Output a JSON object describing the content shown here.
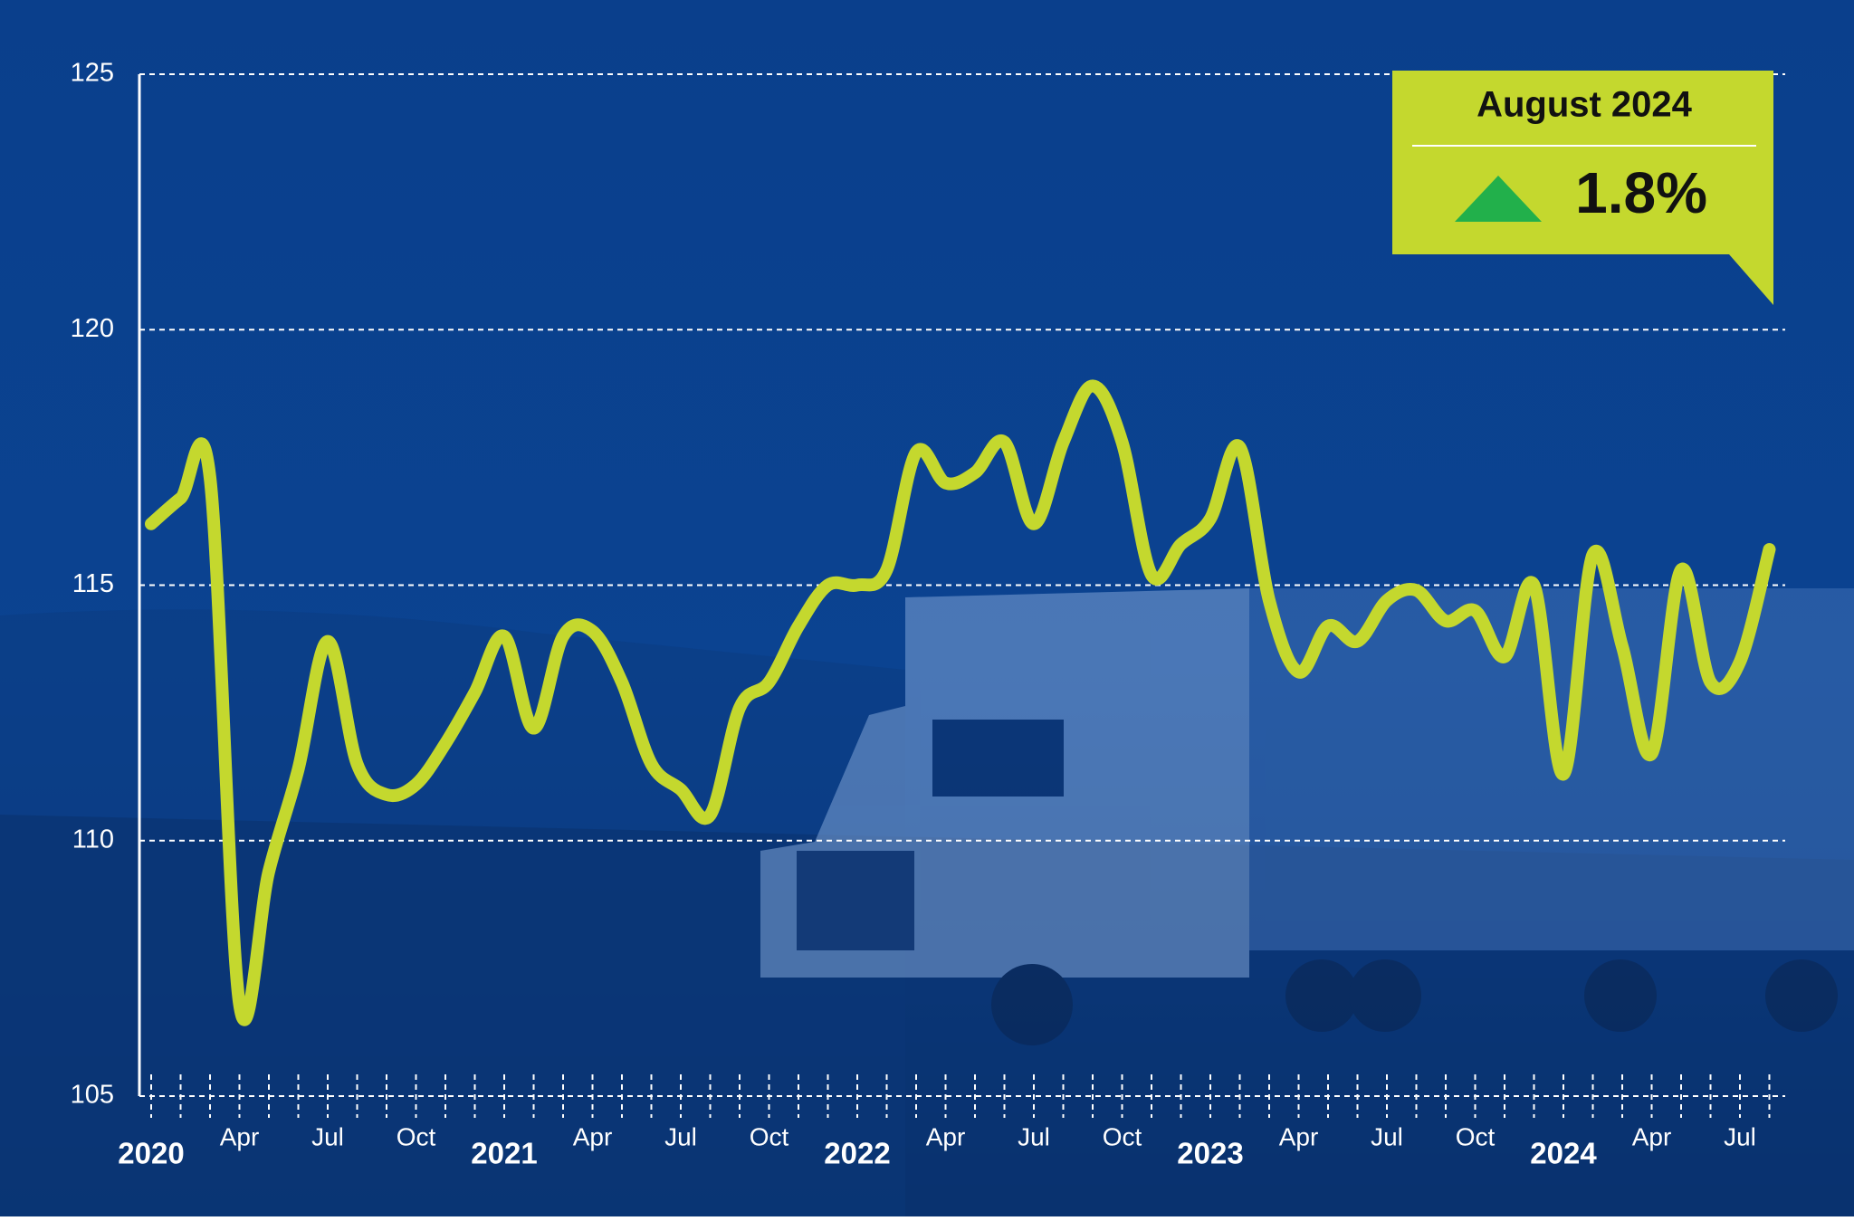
{
  "chart_data": {
    "type": "line",
    "categories": [
      "2020",
      null,
      null,
      "Apr",
      null,
      null,
      "Jul",
      null,
      null,
      "Oct",
      null,
      null,
      "2021",
      null,
      null,
      "Apr",
      null,
      null,
      "Jul",
      null,
      null,
      "Oct",
      null,
      null,
      "2022",
      null,
      null,
      "Apr",
      null,
      null,
      "Jul",
      null,
      null,
      "Oct",
      null,
      null,
      "2023",
      null,
      null,
      "Apr",
      null,
      null,
      "Jul",
      null,
      null,
      "Oct",
      null,
      null,
      "2024",
      null,
      null,
      "Apr",
      null,
      null,
      "Jul",
      null
    ],
    "series": [
      {
        "color": "#c4d82e",
        "values": [
          116.2,
          116.7,
          117.1,
          106.8,
          109.4,
          111.4,
          113.9,
          111.5,
          110.9,
          111.1,
          111.9,
          112.9,
          114.0,
          112.2,
          114.0,
          114.1,
          113.1,
          111.5,
          111.0,
          110.5,
          112.6,
          113.1,
          114.2,
          115.0,
          115.0,
          115.3,
          117.6,
          117.0,
          117.2,
          117.8,
          116.2,
          117.8,
          118.9,
          117.8,
          115.2,
          115.8,
          116.3,
          117.7,
          114.7,
          113.3,
          114.2,
          113.9,
          114.7,
          114.9,
          114.3,
          114.5,
          113.6,
          115.0,
          111.3,
          115.6,
          113.8,
          111.7,
          115.3,
          113.1,
          113.5,
          115.7
        ]
      }
    ],
    "ylim": [
      105,
      125
    ],
    "yticks": [
      105,
      110,
      115,
      120,
      125
    ],
    "grid": true,
    "annotation": {
      "title": "August 2024",
      "change": "1.8%"
    }
  }
}
